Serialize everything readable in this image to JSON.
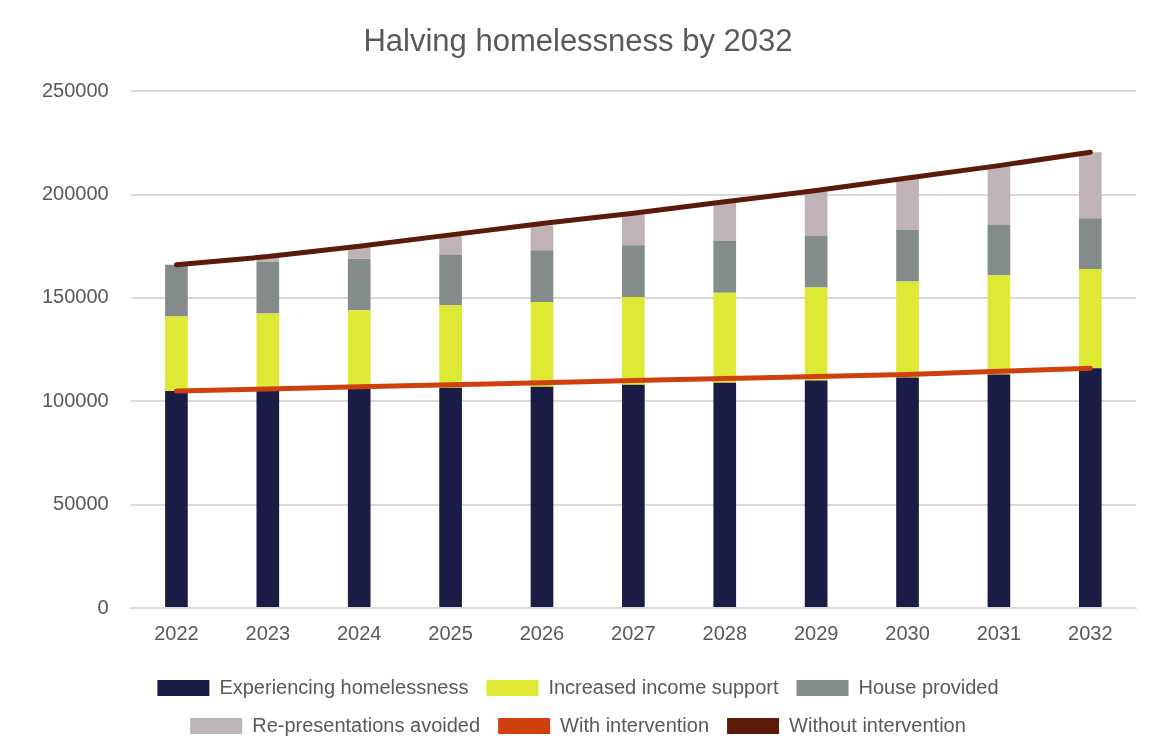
{
  "chart_data": {
    "type": "bar",
    "title": "Halving homelessness by 2032",
    "stacked": true,
    "categories": [
      "2022",
      "2023",
      "2024",
      "2025",
      "2026",
      "2027",
      "2028",
      "2029",
      "2030",
      "2031",
      "2032"
    ],
    "series": [
      {
        "name": "Experiencing homelessness",
        "color": "#1b1c45",
        "values": [
          105000,
          105500,
          106000,
          106500,
          107000,
          108000,
          109000,
          110000,
          111500,
          113000,
          116000
        ]
      },
      {
        "name": "Increased income support",
        "color": "#dde935",
        "values": [
          36000,
          37000,
          38000,
          40000,
          41000,
          42500,
          43500,
          45000,
          46500,
          48000,
          48000
        ]
      },
      {
        "name": "House provided",
        "color": "#838b8b",
        "values": [
          25000,
          25000,
          25000,
          24500,
          25000,
          25000,
          25000,
          25000,
          25000,
          24500,
          24500
        ]
      },
      {
        "name": "Re-presentations avoided",
        "color": "#bfb3b8",
        "values": [
          0,
          2500,
          5500,
          9000,
          12000,
          15000,
          18500,
          21500,
          24500,
          28000,
          32000
        ]
      },
      {
        "name": "With intervention",
        "type": "line",
        "color": "#d0400d",
        "values": [
          105000,
          106000,
          107000,
          108000,
          109000,
          110000,
          111000,
          112000,
          113000,
          114500,
          116000
        ]
      },
      {
        "name": "Without intervention",
        "type": "line",
        "color": "#5c1a08",
        "values": [
          166000,
          170000,
          175000,
          180500,
          186000,
          191000,
          196500,
          202000,
          208000,
          214000,
          220500
        ]
      }
    ],
    "ylim": [
      0,
      250000
    ],
    "yticks": [
      0,
      50000,
      100000,
      150000,
      200000,
      250000
    ],
    "grid": "y",
    "legend": "bottom",
    "marker": "none"
  }
}
